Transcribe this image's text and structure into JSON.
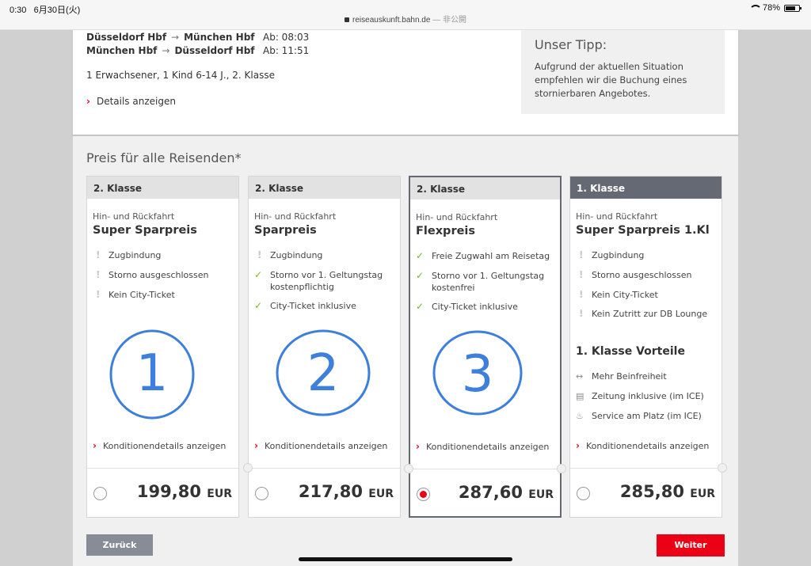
{
  "status_bar": {
    "time": "0:30",
    "date": "6月30日(火)",
    "url": "reiseauskunft.bahn.de",
    "url_suffix": "— 非公開",
    "battery": "78%",
    "battery_level": 0.78
  },
  "journey": {
    "outbound": {
      "from": "Düsseldorf Hbf",
      "to": "München Hbf",
      "departure": "Ab: 08:03"
    },
    "return": {
      "from": "München Hbf",
      "to": "Düsseldorf Hbf",
      "departure": "Ab: 11:51"
    },
    "travellers": "1 Erwachsener, 1 Kind 6-14 J., 2. Klasse",
    "details_link": "Details anzeigen"
  },
  "tip": {
    "title": "Unser Tipp:",
    "text": "Aufgrund der aktuellen Situation empfehlen wir die Buchung eines stornierbaren Angebotes."
  },
  "price_heading": "Preis für alle Reisenden*",
  "cards": [
    {
      "class_label": "2. Klasse",
      "subtitle": "Hin- und Rückfahrt",
      "title": "Super Sparpreis",
      "features": [
        {
          "icon": "exclamation-icon",
          "text": "Zugbindung"
        },
        {
          "icon": "exclamation-icon",
          "text": "Storno ausgeschlossen"
        },
        {
          "icon": "exclamation-icon",
          "text": "Kein City-Ticket"
        }
      ],
      "annotation": "1",
      "conditions": "Konditionendetails anzeigen",
      "price": "199,80",
      "currency": "EUR",
      "selected": false
    },
    {
      "class_label": "2. Klasse",
      "subtitle": "Hin- und Rückfahrt",
      "title": "Sparpreis",
      "features": [
        {
          "icon": "exclamation-icon",
          "text": "Zugbindung"
        },
        {
          "icon": "check-icon",
          "text": "Storno vor 1. Geltungstag kostenpflichtig"
        },
        {
          "icon": "check-icon",
          "text": "City-Ticket inklusive"
        }
      ],
      "annotation": "2",
      "conditions": "Konditionendetails anzeigen",
      "price": "217,80",
      "currency": "EUR",
      "selected": false
    },
    {
      "class_label": "2. Klasse",
      "subtitle": "Hin- und Rückfahrt",
      "title": "Flexpreis",
      "features": [
        {
          "icon": "check-icon",
          "text": "Freie Zugwahl am Reisetag"
        },
        {
          "icon": "check-icon",
          "text": "Storno vor 1. Geltungstag kostenfrei"
        },
        {
          "icon": "check-icon",
          "text": "City-Ticket inklusive"
        }
      ],
      "annotation": "3",
      "conditions": "Konditionendetails anzeigen",
      "price": "287,60",
      "currency": "EUR",
      "selected": true
    },
    {
      "class_label": "1. Klasse",
      "subtitle": "Hin- und Rückfahrt",
      "title": "Super Sparpreis 1.Kl",
      "features": [
        {
          "icon": "exclamation-icon",
          "text": "Zugbindung"
        },
        {
          "icon": "exclamation-icon",
          "text": "Storno ausgeschlossen"
        },
        {
          "icon": "exclamation-icon",
          "text": "Kein City-Ticket"
        },
        {
          "icon": "exclamation-icon",
          "text": "Kein Zutritt zur DB Lounge"
        }
      ],
      "advantages_title": "1. Klasse Vorteile",
      "advantages": [
        {
          "icon": "legroom-arrows-icon",
          "text": "Mehr Beinfreiheit"
        },
        {
          "icon": "newspaper-icon",
          "text": "Zeitung inklusive (im ICE)"
        },
        {
          "icon": "seat-service-icon",
          "text": "Service am Platz (im ICE)"
        }
      ],
      "conditions": "Konditionendetails anzeigen",
      "price": "285,80",
      "currency": "EUR",
      "selected": false
    }
  ],
  "buttons": {
    "back": "Zurück",
    "next": "Weiter"
  },
  "colors": {
    "db_red": "#ec0016",
    "check_green": "#7ab52b",
    "annotation_blue": "#3d7fdc",
    "first_class_header": "#646973"
  }
}
